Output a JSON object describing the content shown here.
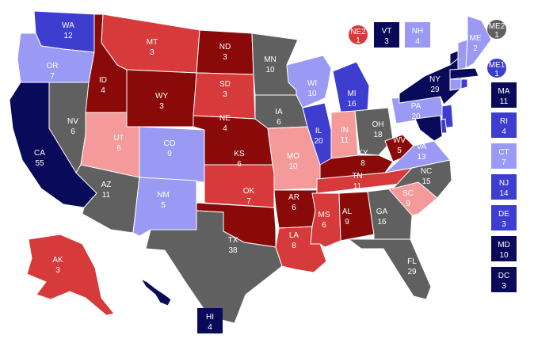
{
  "palette": {
    "safe_dem": "#0a0a5a",
    "likely_dem": "#3d3dd0",
    "lean_dem": "#9a9af5",
    "tossup": "#606060",
    "lean_rep": "#f49a9a",
    "likely_rep": "#d63a3a",
    "safe_rep": "#8a0a0a"
  },
  "states": [
    {
      "abbr": "WA",
      "votes": "12",
      "rating": "likely_dem"
    },
    {
      "abbr": "OR",
      "votes": "7",
      "rating": "lean_dem"
    },
    {
      "abbr": "CA",
      "votes": "55",
      "rating": "safe_dem"
    },
    {
      "abbr": "NV",
      "votes": "6",
      "rating": "tossup"
    },
    {
      "abbr": "ID",
      "votes": "4",
      "rating": "safe_rep"
    },
    {
      "abbr": "MT",
      "votes": "3",
      "rating": "likely_rep"
    },
    {
      "abbr": "WY",
      "votes": "3",
      "rating": "safe_rep"
    },
    {
      "abbr": "UT",
      "votes": "6",
      "rating": "lean_rep"
    },
    {
      "abbr": "AZ",
      "votes": "11",
      "rating": "tossup"
    },
    {
      "abbr": "CO",
      "votes": "9",
      "rating": "lean_dem"
    },
    {
      "abbr": "NM",
      "votes": "5",
      "rating": "lean_dem"
    },
    {
      "abbr": "ND",
      "votes": "3",
      "rating": "safe_rep"
    },
    {
      "abbr": "SD",
      "votes": "3",
      "rating": "likely_rep"
    },
    {
      "abbr": "NE",
      "votes": "4",
      "rating": "safe_rep"
    },
    {
      "abbr": "KS",
      "votes": "6",
      "rating": "likely_rep"
    },
    {
      "abbr": "OK",
      "votes": "7",
      "rating": "safe_rep"
    },
    {
      "abbr": "TX",
      "votes": "38",
      "rating": "tossup"
    },
    {
      "abbr": "MN",
      "votes": "10",
      "rating": "tossup"
    },
    {
      "abbr": "IA",
      "votes": "6",
      "rating": "tossup"
    },
    {
      "abbr": "MO",
      "votes": "10",
      "rating": "lean_rep"
    },
    {
      "abbr": "AR",
      "votes": "6",
      "rating": "safe_rep"
    },
    {
      "abbr": "LA",
      "votes": "8",
      "rating": "likely_rep"
    },
    {
      "abbr": "WI",
      "votes": "10",
      "rating": "lean_dem"
    },
    {
      "abbr": "IL",
      "votes": "20",
      "rating": "likely_dem"
    },
    {
      "abbr": "MI",
      "votes": "16",
      "rating": "likely_dem"
    },
    {
      "abbr": "IN",
      "votes": "11",
      "rating": "lean_rep"
    },
    {
      "abbr": "OH",
      "votes": "18",
      "rating": "tossup"
    },
    {
      "abbr": "KY",
      "votes": "8",
      "rating": "safe_rep"
    },
    {
      "abbr": "TN",
      "votes": "11",
      "rating": "likely_rep"
    },
    {
      "abbr": "MS",
      "votes": "6",
      "rating": "likely_rep"
    },
    {
      "abbr": "AL",
      "votes": "9",
      "rating": "safe_rep"
    },
    {
      "abbr": "GA",
      "votes": "16",
      "rating": "tossup"
    },
    {
      "abbr": "FL",
      "votes": "29",
      "rating": "tossup"
    },
    {
      "abbr": "SC",
      "votes": "9",
      "rating": "lean_rep"
    },
    {
      "abbr": "NC",
      "votes": "15",
      "rating": "tossup"
    },
    {
      "abbr": "VA",
      "votes": "13",
      "rating": "lean_dem"
    },
    {
      "abbr": "WV",
      "votes": "5",
      "rating": "safe_rep"
    },
    {
      "abbr": "PA",
      "votes": "20",
      "rating": "lean_dem"
    },
    {
      "abbr": "NY",
      "votes": "29",
      "rating": "safe_dem"
    },
    {
      "abbr": "ME",
      "votes": "2",
      "rating": "lean_dem"
    },
    {
      "abbr": "AK",
      "votes": "3",
      "rating": "likely_rep"
    },
    {
      "abbr": "HI",
      "votes": "4",
      "rating": "safe_dem"
    }
  ],
  "districts": [
    {
      "abbr": "NE2",
      "votes": "1",
      "rating": "likely_rep"
    },
    {
      "abbr": "ME2",
      "votes": "1",
      "rating": "tossup"
    },
    {
      "abbr": "ME1",
      "votes": "1",
      "rating": "likely_dem"
    }
  ],
  "small_state_boxes": [
    {
      "abbr": "VT",
      "votes": "3",
      "rating": "safe_dem"
    },
    {
      "abbr": "NH",
      "votes": "4",
      "rating": "lean_dem"
    },
    {
      "abbr": "MA",
      "votes": "11",
      "rating": "safe_dem"
    },
    {
      "abbr": "RI",
      "votes": "4",
      "rating": "likely_dem"
    },
    {
      "abbr": "CT",
      "votes": "7",
      "rating": "lean_dem"
    },
    {
      "abbr": "NJ",
      "votes": "14",
      "rating": "likely_dem"
    },
    {
      "abbr": "DE",
      "votes": "3",
      "rating": "likely_dem"
    },
    {
      "abbr": "MD",
      "votes": "10",
      "rating": "safe_dem"
    },
    {
      "abbr": "DC",
      "votes": "3",
      "rating": "safe_dem"
    },
    {
      "abbr": "HI",
      "votes": "4",
      "rating": "safe_dem"
    }
  ]
}
